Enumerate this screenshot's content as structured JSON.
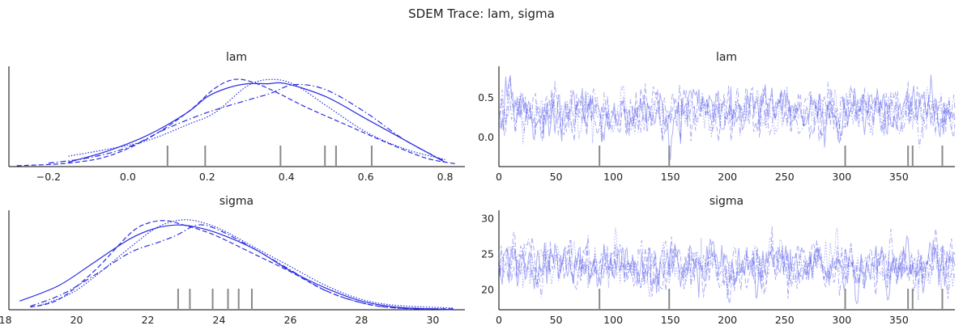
{
  "figure": {
    "title": "SDEM Trace: lam, sigma"
  },
  "colors": {
    "line": "#2a2ee0",
    "trace": "#4a4ee8",
    "rug": "#8a8a8a",
    "axis": "#000000"
  },
  "chart_data": [
    {
      "id": "lam_density",
      "type": "line",
      "title": "lam",
      "xlabel": "",
      "ylabel": "",
      "xlim": [
        -0.3,
        0.85
      ],
      "ylim": [
        0,
        1.15
      ],
      "xticks": [
        -0.2,
        0.0,
        0.2,
        0.4,
        0.6,
        0.8
      ],
      "xtick_labels": [
        "−0.2",
        "0.0",
        "0.2",
        "0.4",
        "0.6",
        "0.8"
      ],
      "yticks_shown": false,
      "series": [
        {
          "style": "solid",
          "x": [
            -0.15,
            -0.05,
            0.05,
            0.15,
            0.2,
            0.25,
            0.3,
            0.35,
            0.4,
            0.5,
            0.6,
            0.7,
            0.8
          ],
          "y": [
            0.05,
            0.18,
            0.36,
            0.62,
            0.8,
            0.9,
            0.95,
            0.95,
            0.95,
            0.8,
            0.55,
            0.3,
            0.05
          ]
        },
        {
          "style": "dashed",
          "x": [
            -0.28,
            -0.15,
            -0.05,
            0.05,
            0.15,
            0.22,
            0.27,
            0.32,
            0.38,
            0.45,
            0.55,
            0.65,
            0.75,
            0.83
          ],
          "y": [
            0.01,
            0.04,
            0.12,
            0.32,
            0.62,
            0.9,
            1.0,
            0.96,
            0.84,
            0.68,
            0.48,
            0.28,
            0.1,
            0.03
          ]
        },
        {
          "style": "dotted",
          "x": [
            -0.15,
            -0.05,
            0.05,
            0.15,
            0.22,
            0.3,
            0.36,
            0.42,
            0.5,
            0.6,
            0.7,
            0.8
          ],
          "y": [
            0.12,
            0.2,
            0.3,
            0.48,
            0.62,
            0.92,
            1.0,
            0.94,
            0.7,
            0.4,
            0.2,
            0.08
          ]
        },
        {
          "style": "dashdot",
          "x": [
            -0.2,
            -0.1,
            0.0,
            0.1,
            0.2,
            0.3,
            0.36,
            0.42,
            0.5,
            0.6,
            0.7,
            0.8
          ],
          "y": [
            0.04,
            0.1,
            0.22,
            0.44,
            0.62,
            0.76,
            0.84,
            0.94,
            0.88,
            0.62,
            0.3,
            0.06
          ]
        }
      ],
      "rug": [
        0.1,
        0.195,
        0.385,
        0.497,
        0.525,
        0.615
      ]
    },
    {
      "id": "lam_trace",
      "type": "line",
      "title": "lam",
      "xlabel": "",
      "ylabel": "",
      "xlim": [
        0,
        399
      ],
      "ylim": [
        -0.37,
        0.9
      ],
      "xticks": [
        0,
        50,
        100,
        150,
        200,
        250,
        300,
        350
      ],
      "xtick_labels": [
        "0",
        "50",
        "100",
        "150",
        "200",
        "250",
        "300",
        "350"
      ],
      "yticks": [
        0.0,
        0.5
      ],
      "ytick_labels": [
        "0.0",
        "0.5"
      ],
      "trace_mean": 0.32,
      "trace_sd": 0.17,
      "n_draws": 400,
      "chain_styles": [
        "solid",
        "dashed",
        "dotted",
        "dashdot"
      ],
      "rug": [
        88,
        149,
        303,
        358,
        362,
        388
      ]
    },
    {
      "id": "sigma_density",
      "type": "line",
      "title": "sigma",
      "xlabel": "",
      "ylabel": "",
      "xlim": [
        18.1,
        30.9
      ],
      "ylim": [
        0,
        1.15
      ],
      "xticks": [
        18,
        20,
        22,
        24,
        26,
        28,
        30
      ],
      "xtick_labels": [
        "18",
        "20",
        "22",
        "24",
        "26",
        "28",
        "30"
      ],
      "yticks_shown": false,
      "series": [
        {
          "style": "solid",
          "x": [
            18.4,
            19.5,
            20.5,
            21.5,
            22.2,
            22.8,
            23.3,
            24.0,
            25.0,
            26.0,
            27.0,
            28.0,
            29.0,
            30.0,
            30.6
          ],
          "y": [
            0.1,
            0.28,
            0.55,
            0.82,
            0.94,
            0.98,
            0.96,
            0.88,
            0.7,
            0.45,
            0.25,
            0.1,
            0.03,
            0.01,
            0.0
          ]
        },
        {
          "style": "dashed",
          "x": [
            18.7,
            19.5,
            20.5,
            21.5,
            22.0,
            22.5,
            23.0,
            23.5,
            24.0,
            25.0,
            26.0,
            27.0,
            28.0,
            29.0,
            30.6
          ],
          "y": [
            0.03,
            0.12,
            0.45,
            0.88,
            1.0,
            1.03,
            0.98,
            0.92,
            0.84,
            0.64,
            0.44,
            0.22,
            0.08,
            0.02,
            0.01
          ]
        },
        {
          "style": "dotted",
          "x": [
            18.9,
            19.8,
            20.5,
            21.5,
            22.3,
            23.0,
            23.6,
            24.2,
            25.0,
            26.0,
            27.0,
            28.0,
            29.0,
            30.6
          ],
          "y": [
            0.04,
            0.18,
            0.38,
            0.72,
            0.96,
            1.04,
            1.0,
            0.9,
            0.72,
            0.5,
            0.28,
            0.12,
            0.05,
            0.02
          ]
        },
        {
          "style": "dashdot",
          "x": [
            18.7,
            19.6,
            20.5,
            21.5,
            22.3,
            22.8,
            23.4,
            24.0,
            25.0,
            26.0,
            27.0,
            28.0,
            29.0,
            30.6
          ],
          "y": [
            0.04,
            0.18,
            0.4,
            0.66,
            0.78,
            0.86,
            0.98,
            0.92,
            0.7,
            0.46,
            0.22,
            0.08,
            0.02,
            0.0
          ]
        }
      ],
      "rug": [
        22.85,
        23.18,
        23.82,
        24.25,
        24.55,
        24.92
      ]
    },
    {
      "id": "sigma_trace",
      "type": "line",
      "title": "sigma",
      "xlabel": "",
      "ylabel": "",
      "xlim": [
        0,
        399
      ],
      "ylim": [
        17.2,
        31.2
      ],
      "xticks": [
        0,
        50,
        100,
        150,
        200,
        250,
        300,
        350
      ],
      "xtick_labels": [
        "0",
        "50",
        "100",
        "150",
        "200",
        "250",
        "300",
        "350"
      ],
      "yticks": [
        20,
        25,
        30
      ],
      "ytick_labels": [
        "20",
        "25",
        "30"
      ],
      "trace_mean": 23.4,
      "trace_sd": 1.9,
      "n_draws": 400,
      "chain_styles": [
        "solid",
        "dashed",
        "dotted",
        "dashdot"
      ],
      "rug": [
        88,
        149,
        303,
        358,
        362,
        388
      ]
    }
  ]
}
